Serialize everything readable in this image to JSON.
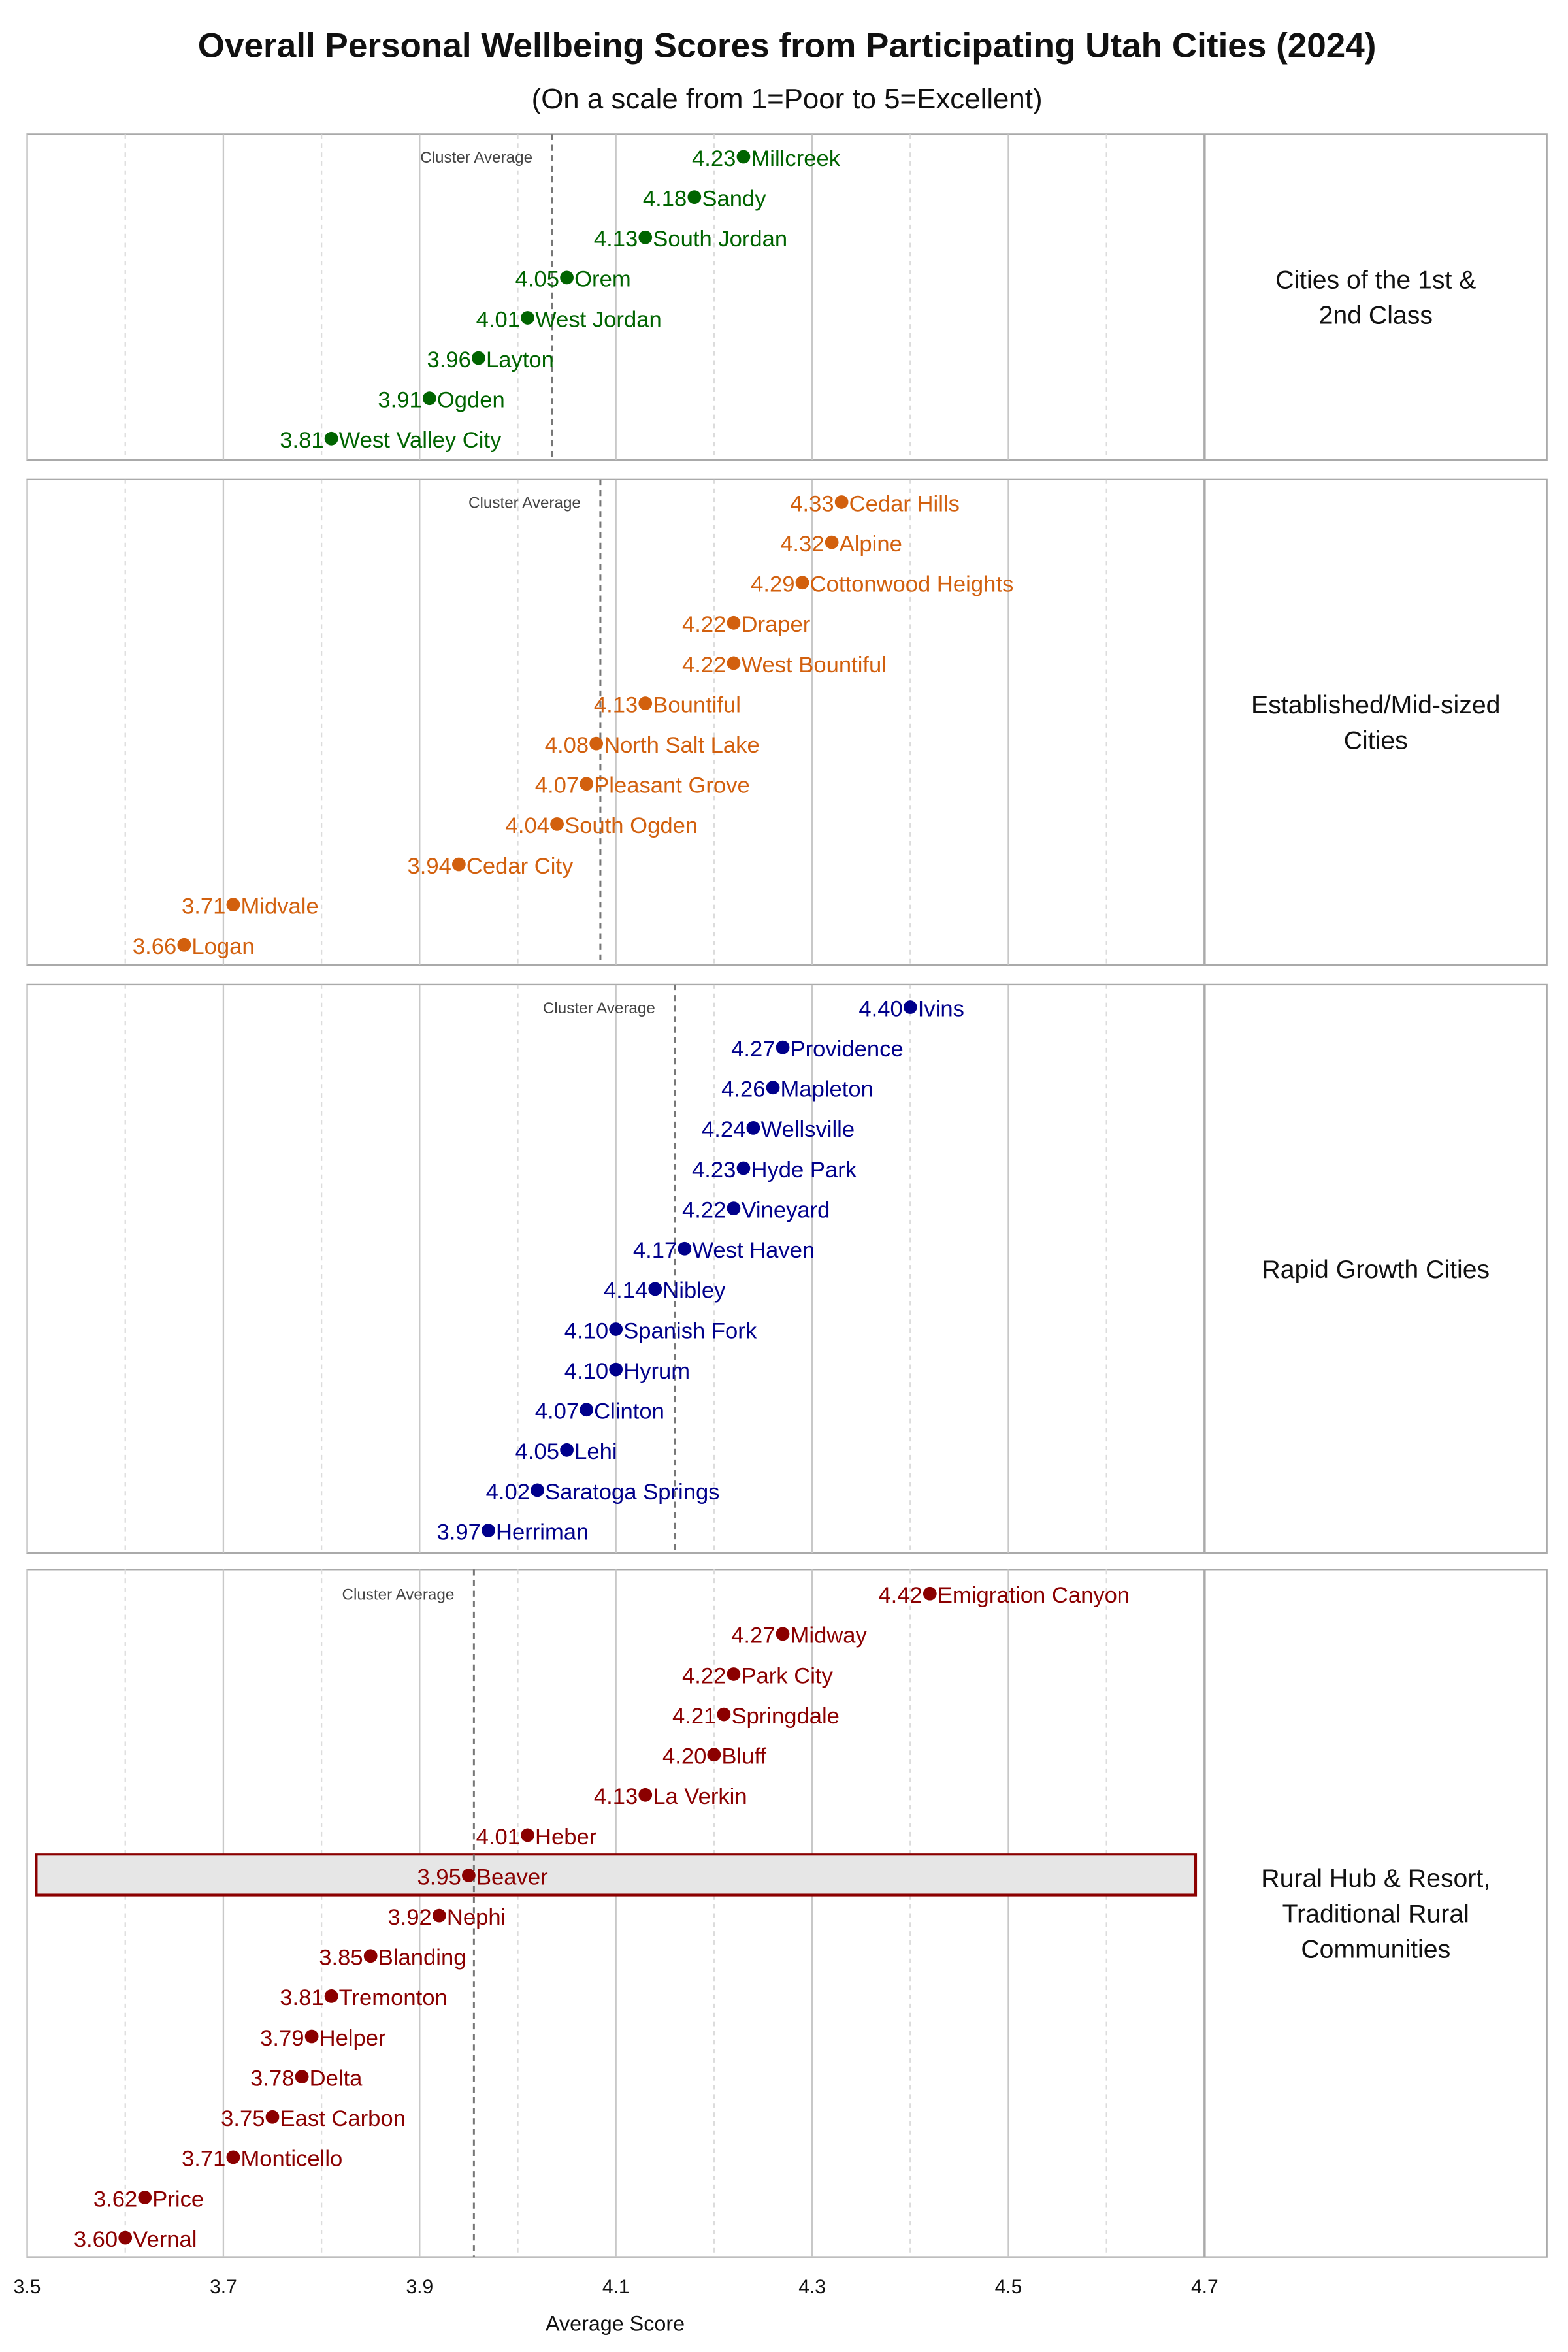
{
  "chart_data": {
    "type": "scatter",
    "title": "Overall Personal Wellbeing Scores from Participating Utah Cities (2024)",
    "subtitle": "(On a scale from 1=Poor to 5=Excellent)",
    "xlabel": "Average Score",
    "xlim": [
      3.5,
      4.7
    ],
    "xticks": [
      "3.5",
      "3.7",
      "3.9",
      "4.1",
      "4.3",
      "4.5",
      "4.7"
    ],
    "grid": true,
    "average_label": "Cluster Average",
    "highlight": "Beaver",
    "panels": [
      {
        "name": "Cities of the 1st & 2nd Class",
        "name_lines": [
          "Cities of the 1st &",
          "2nd Class"
        ],
        "color": "#006400",
        "points": [
          {
            "city": "Millcreek",
            "value": 4.23
          },
          {
            "city": "Sandy",
            "value": 4.18
          },
          {
            "city": "South Jordan",
            "value": 4.13
          },
          {
            "city": "Orem",
            "value": 4.05
          },
          {
            "city": "West Jordan",
            "value": 4.01
          },
          {
            "city": "Layton",
            "value": 3.96
          },
          {
            "city": "Ogden",
            "value": 3.91
          },
          {
            "city": "West Valley City",
            "value": 3.81
          }
        ]
      },
      {
        "name": "Established/Mid-sized Cities",
        "name_lines": [
          "Established/Mid-sized",
          "Cities"
        ],
        "color": "#d2600e",
        "points": [
          {
            "city": "Cedar Hills",
            "value": 4.33
          },
          {
            "city": "Alpine",
            "value": 4.32
          },
          {
            "city": "Cottonwood Heights",
            "value": 4.29
          },
          {
            "city": "Draper",
            "value": 4.22
          },
          {
            "city": "West Bountiful",
            "value": 4.22
          },
          {
            "city": "Bountiful",
            "value": 4.13
          },
          {
            "city": "North Salt Lake",
            "value": 4.08
          },
          {
            "city": "Pleasant Grove",
            "value": 4.07
          },
          {
            "city": "South Ogden",
            "value": 4.04
          },
          {
            "city": "Cedar City",
            "value": 3.94
          },
          {
            "city": "Midvale",
            "value": 3.71
          },
          {
            "city": "Logan",
            "value": 3.66
          }
        ]
      },
      {
        "name": "Rapid Growth Cities",
        "name_lines": [
          "Rapid Growth Cities"
        ],
        "color": "#00008b",
        "points": [
          {
            "city": "Ivins",
            "value": 4.4
          },
          {
            "city": "Providence",
            "value": 4.27
          },
          {
            "city": "Mapleton",
            "value": 4.26
          },
          {
            "city": "Wellsville",
            "value": 4.24
          },
          {
            "city": "Hyde Park",
            "value": 4.23
          },
          {
            "city": "Vineyard",
            "value": 4.22
          },
          {
            "city": "West Haven",
            "value": 4.17
          },
          {
            "city": "Nibley",
            "value": 4.14
          },
          {
            "city": "Spanish Fork",
            "value": 4.1
          },
          {
            "city": "Hyrum",
            "value": 4.1
          },
          {
            "city": "Clinton",
            "value": 4.07
          },
          {
            "city": "Lehi",
            "value": 4.05
          },
          {
            "city": "Saratoga Springs",
            "value": 4.02
          },
          {
            "city": "Herriman",
            "value": 3.97
          }
        ]
      },
      {
        "name": "Rural Hub & Resort, Traditional Rural Communities",
        "name_lines": [
          "Rural Hub & Resort,",
          "Traditional Rural",
          "Communities"
        ],
        "color": "#8b0000",
        "points": [
          {
            "city": "Emigration Canyon",
            "value": 4.42
          },
          {
            "city": "Midway",
            "value": 4.27
          },
          {
            "city": "Park City",
            "value": 4.22
          },
          {
            "city": "Springdale",
            "value": 4.21
          },
          {
            "city": "Bluff",
            "value": 4.2
          },
          {
            "city": "La Verkin",
            "value": 4.13
          },
          {
            "city": "Heber",
            "value": 4.01
          },
          {
            "city": "Beaver",
            "value": 3.95
          },
          {
            "city": "Nephi",
            "value": 3.92
          },
          {
            "city": "Blanding",
            "value": 3.85
          },
          {
            "city": "Tremonton",
            "value": 3.81
          },
          {
            "city": "Helper",
            "value": 3.79
          },
          {
            "city": "Delta",
            "value": 3.78
          },
          {
            "city": "East Carbon",
            "value": 3.75
          },
          {
            "city": "Monticello",
            "value": 3.71
          },
          {
            "city": "Price",
            "value": 3.62
          },
          {
            "city": "Vernal",
            "value": 3.6
          }
        ]
      }
    ]
  }
}
